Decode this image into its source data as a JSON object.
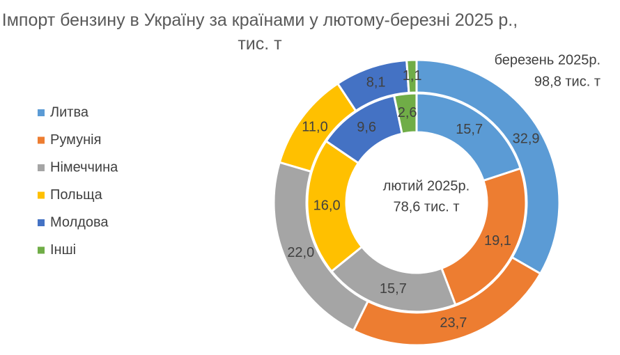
{
  "chart_data": {
    "type": "doughnut",
    "title": "Імпорт бензину в Україну за країнами у лютому-березні 2025 р., тис. т",
    "categories": [
      "Литва",
      "Румунія",
      "Німеччина",
      "Польща",
      "Молдова",
      "Інші"
    ],
    "colors": [
      "#5b9bd5",
      "#ed7d31",
      "#a5a5a5",
      "#ffc000",
      "#4472c4",
      "#70ad47"
    ],
    "legend": "left",
    "series": [
      {
        "name": "лютий 2025р.",
        "total_label": "78,6 тис. т",
        "ring": "inner",
        "values": [
          15.7,
          19.1,
          15.7,
          16.0,
          9.6,
          2.6
        ],
        "value_labels": [
          "15,7",
          "19,1",
          "15,7",
          "16,0",
          "9,6",
          "2,6"
        ]
      },
      {
        "name": "березень 2025р.",
        "total_label": "98,8 тис. т",
        "ring": "outer",
        "values": [
          32.9,
          23.7,
          22.0,
          11.0,
          8.1,
          1.1
        ],
        "value_labels": [
          "32,9",
          "23,7",
          "22,0",
          "11,0",
          "8,1",
          "1,1"
        ]
      }
    ]
  }
}
